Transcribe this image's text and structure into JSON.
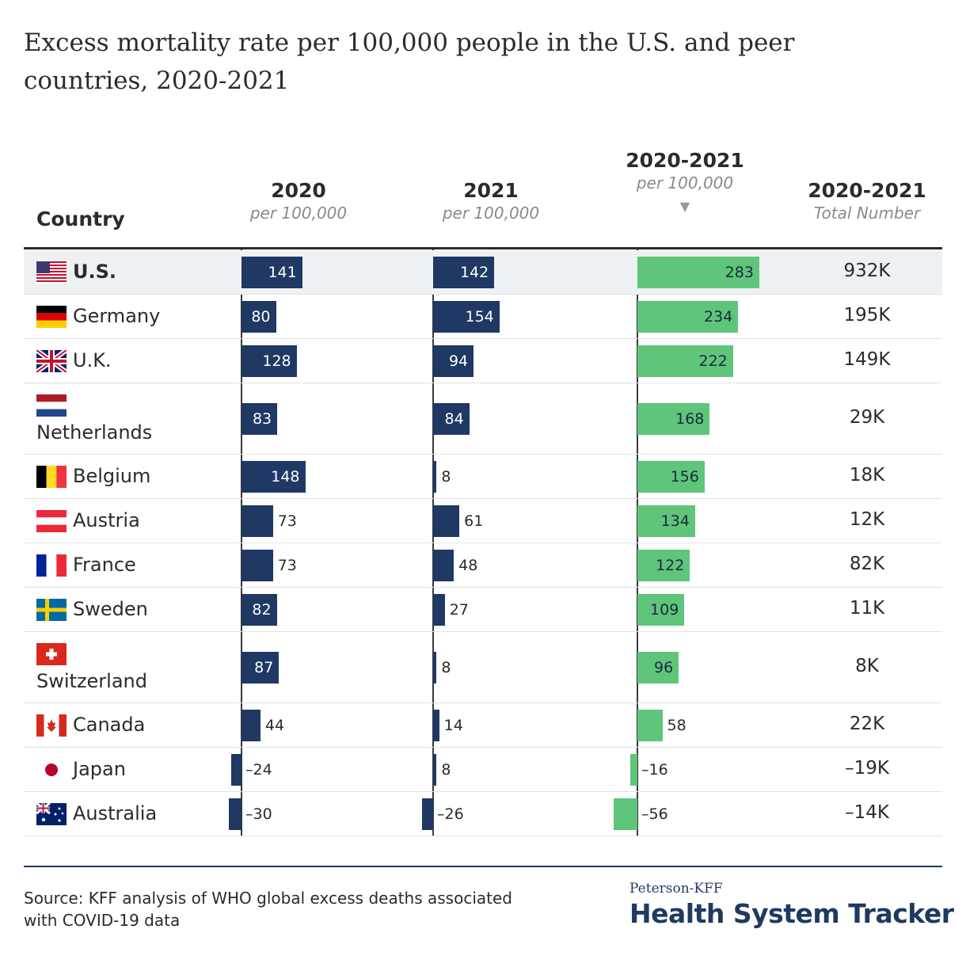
{
  "title": "Excess mortality rate per 100,000 people in the U.S. and peer countries, 2020-2021",
  "headers": {
    "country": "Country",
    "y2020": "2020",
    "y2020_sub": "per 100,000",
    "y2021": "2021",
    "y2021_sub": "per 100,000",
    "ycomb": "2020-2021",
    "ycomb_sub": "per 100,000",
    "ycomb_sort": "▼",
    "total": "2020-2021",
    "total_sub": "Total Number"
  },
  "source": "Source: KFF analysis of WHO global excess deaths associated with COVID-19 data",
  "brand": {
    "top": "Peterson-KFF",
    "main": "Health System Tracker"
  },
  "colors": {
    "navy": "#1f3864",
    "green": "#5ec57a",
    "highlight": "#eef1f3"
  },
  "chart_data": {
    "type": "table",
    "columns": [
      "Country",
      "2020 per 100,000",
      "2021 per 100,000",
      "2020-2021 per 100,000",
      "2020-2021 Total Number"
    ],
    "rows": [
      {
        "country": "U.S.",
        "flag": "us-flag-icon",
        "v2020": 141,
        "v2021": 142,
        "vcomb": 283,
        "total": "932K",
        "l2020": "141",
        "l2021": "142",
        "lcomb": "283",
        "highlight": true
      },
      {
        "country": "Germany",
        "flag": "germany-flag-icon",
        "v2020": 80,
        "v2021": 154,
        "vcomb": 234,
        "total": "195K",
        "l2020": "80",
        "l2021": "154",
        "lcomb": "234"
      },
      {
        "country": "U.K.",
        "flag": "uk-flag-icon",
        "v2020": 128,
        "v2021": 94,
        "vcomb": 222,
        "total": "149K",
        "l2020": "128",
        "l2021": "94",
        "lcomb": "222"
      },
      {
        "country": "Netherlands",
        "flag": "netherlands-flag-icon",
        "v2020": 83,
        "v2021": 84,
        "vcomb": 168,
        "total": "29K",
        "l2020": "83",
        "l2021": "84",
        "lcomb": "168"
      },
      {
        "country": "Belgium",
        "flag": "belgium-flag-icon",
        "v2020": 148,
        "v2021": 8,
        "vcomb": 156,
        "total": "18K",
        "l2020": "148",
        "l2021": "8",
        "lcomb": "156"
      },
      {
        "country": "Austria",
        "flag": "austria-flag-icon",
        "v2020": 73,
        "v2021": 61,
        "vcomb": 134,
        "total": "12K",
        "l2020": "73",
        "l2021": "61",
        "lcomb": "134"
      },
      {
        "country": "France",
        "flag": "france-flag-icon",
        "v2020": 73,
        "v2021": 48,
        "vcomb": 122,
        "total": "82K",
        "l2020": "73",
        "l2021": "48",
        "lcomb": "122"
      },
      {
        "country": "Sweden",
        "flag": "sweden-flag-icon",
        "v2020": 82,
        "v2021": 27,
        "vcomb": 109,
        "total": "11K",
        "l2020": "82",
        "l2021": "27",
        "lcomb": "109"
      },
      {
        "country": "Switzerland",
        "flag": "switzerland-flag-icon",
        "v2020": 87,
        "v2021": 8,
        "vcomb": 96,
        "total": "8K",
        "l2020": "87",
        "l2021": "8",
        "lcomb": "96"
      },
      {
        "country": "Canada",
        "flag": "canada-flag-icon",
        "v2020": 44,
        "v2021": 14,
        "vcomb": 58,
        "total": "22K",
        "l2020": "44",
        "l2021": "14",
        "lcomb": "58"
      },
      {
        "country": "Japan",
        "flag": "japan-flag-icon",
        "v2020": -24,
        "v2021": 8,
        "vcomb": -16,
        "total": "–19K",
        "l2020": "–24",
        "l2021": "8",
        "lcomb": "–16"
      },
      {
        "country": "Australia",
        "flag": "australia-flag-icon",
        "v2020": -30,
        "v2021": -26,
        "vcomb": -56,
        "total": "–14K",
        "l2020": "–30",
        "l2021": "–26",
        "lcomb": "–56"
      }
    ]
  }
}
